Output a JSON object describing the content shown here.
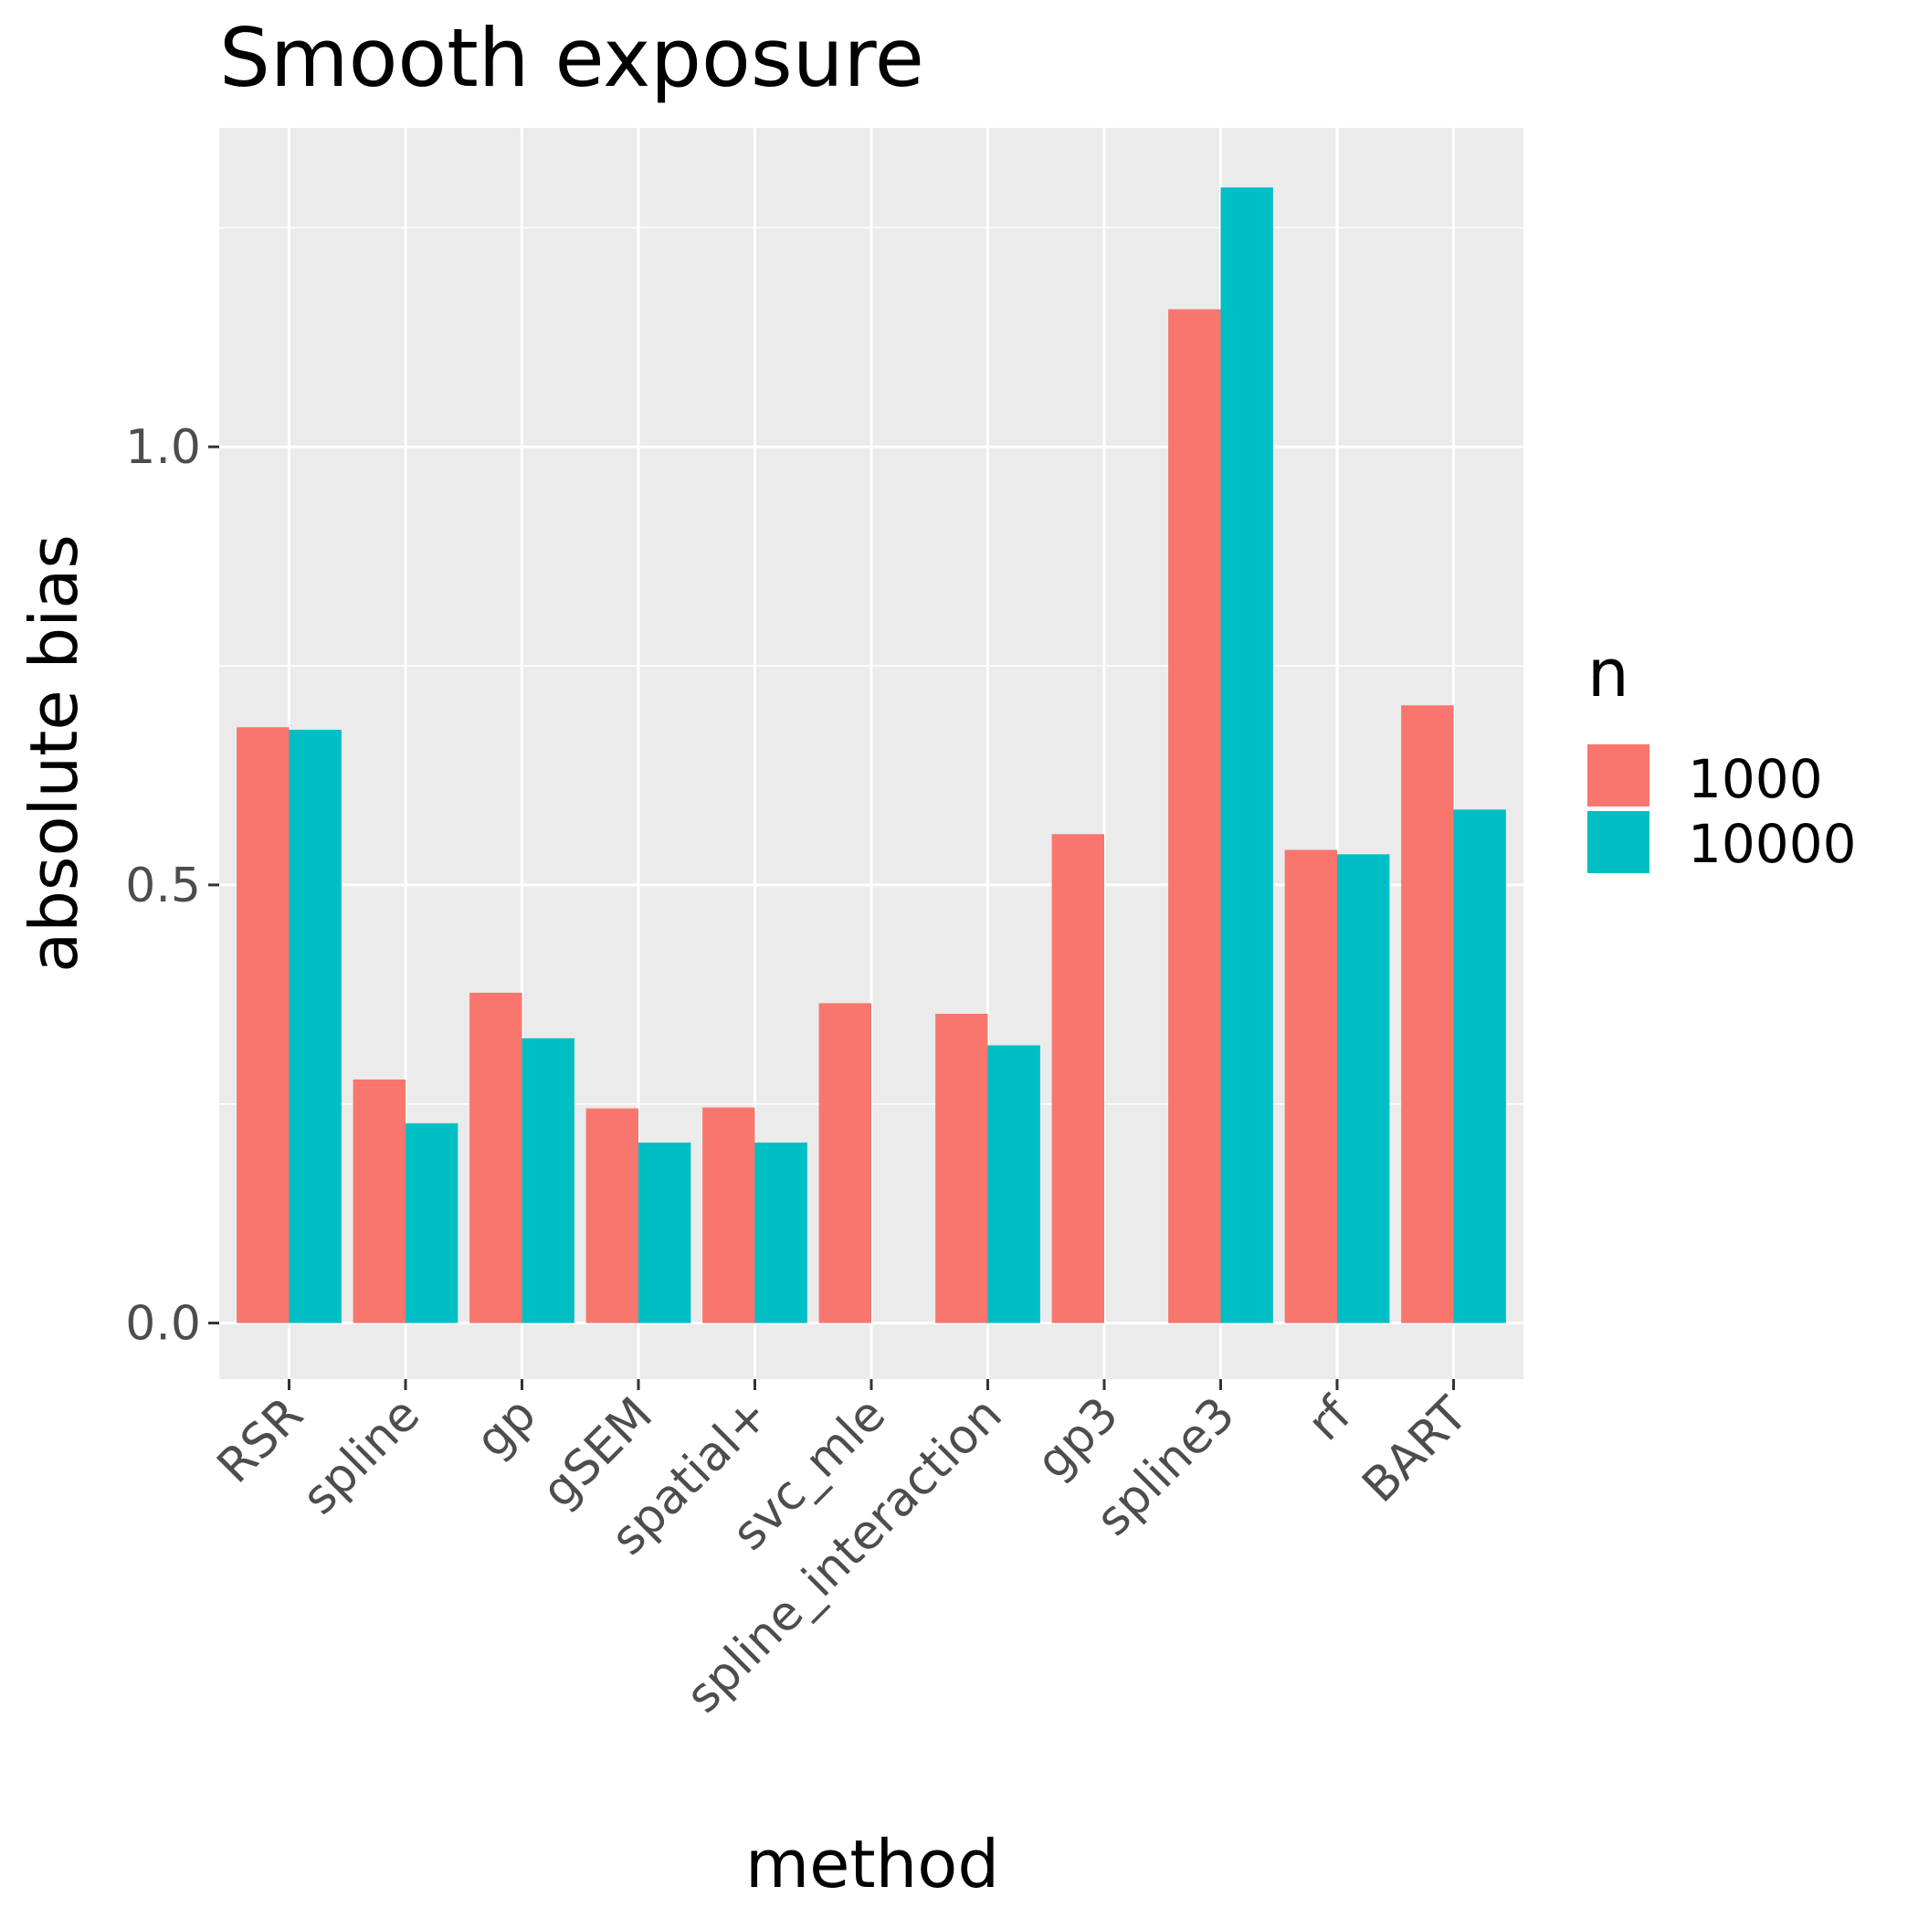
{
  "chart_data": {
    "type": "bar",
    "title": "Smooth exposure",
    "xlabel": "method",
    "ylabel": "absolute bias",
    "categories": [
      "RSR",
      "spline",
      "gp",
      "gSEM",
      "spatial+",
      "svc_mle",
      "spline_interaction",
      "gp3",
      "spline3",
      "rf",
      "BART"
    ],
    "series": [
      {
        "name": "1000",
        "color": "#F8766D",
        "values": [
          0.68,
          0.278,
          0.377,
          0.245,
          0.246,
          0.365,
          0.353,
          0.558,
          1.157,
          0.54,
          0.705
        ]
      },
      {
        "name": "10000",
        "color": "#00BFC4",
        "values": [
          0.677,
          0.228,
          0.325,
          0.206,
          0.206,
          null,
          0.317,
          null,
          1.296,
          0.535,
          0.586
        ]
      }
    ],
    "ylim": [
      -0.064,
      1.364
    ],
    "yticks": [
      0.0,
      0.5,
      1.0
    ],
    "ytick_labels": [
      "0.0",
      "0.5",
      "1.0"
    ],
    "legend": {
      "title": "n",
      "position": "right"
    },
    "grid": true,
    "panel_background": "#EBEBEB"
  }
}
